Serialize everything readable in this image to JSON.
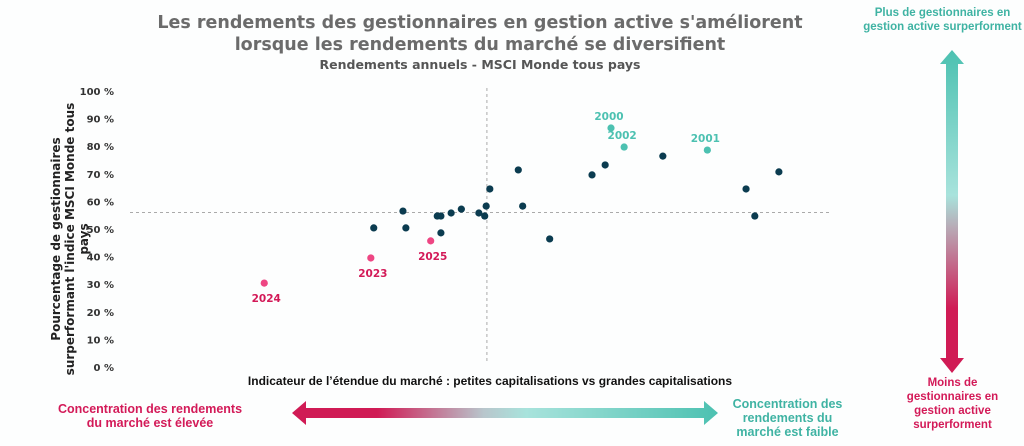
{
  "colors": {
    "dark": "#0b3c50",
    "teal": "#4cc1b1",
    "pink": "#ee4683",
    "pink_label": "#d31a58",
    "teal_label": "#3fb3a3"
  },
  "chart_data": {
    "type": "scatter",
    "title": "Les rendements des gestionnaires en gestion active s'améliorent lorsque les rendements du marché se diversifient",
    "subtitle": "Rendements annuels - MSCI Monde tous pays",
    "xlabel": "Indicateur de l’étendue du marché : petites capitalisations vs grandes capitalisations",
    "ylabel": "Pourcentage de gestionnaires surperformant l'indice MSCI Monde tous pays",
    "ylim": [
      0,
      100
    ],
    "xlim": [
      0,
      100
    ],
    "yticks": [
      "0 %",
      "10 %",
      "20 %",
      "30 %",
      "40 %",
      "50 %",
      "60 %",
      "70 %",
      "80 %",
      "90 %",
      "100 %"
    ],
    "reference_lines": {
      "x": 53,
      "y": 56
    },
    "grid": false,
    "points": [
      {
        "x": 37.5,
        "y": 50.4
      },
      {
        "x": 41.5,
        "y": 56.5
      },
      {
        "x": 41.9,
        "y": 50.4
      },
      {
        "x": 46.2,
        "y": 54.7
      },
      {
        "x": 46.7,
        "y": 54.7
      },
      {
        "x": 46.7,
        "y": 48.6
      },
      {
        "x": 48.1,
        "y": 55.8
      },
      {
        "x": 49.5,
        "y": 57.2
      },
      {
        "x": 51.9,
        "y": 55.8
      },
      {
        "x": 52.7,
        "y": 54.7
      },
      {
        "x": 52.9,
        "y": 58.3
      },
      {
        "x": 53.4,
        "y": 64.5
      },
      {
        "x": 57.3,
        "y": 71.4
      },
      {
        "x": 57.9,
        "y": 58.3
      },
      {
        "x": 61.6,
        "y": 46.4
      },
      {
        "x": 67.4,
        "y": 69.6
      },
      {
        "x": 69.2,
        "y": 73.2
      },
      {
        "x": 77.1,
        "y": 76.4
      },
      {
        "x": 88.5,
        "y": 64.5
      },
      {
        "x": 89.7,
        "y": 54.7
      },
      {
        "x": 93.0,
        "y": 70.7
      }
    ],
    "highlight_high": [
      {
        "label": "2000",
        "x": 70.0,
        "y": 86.6
      },
      {
        "label": "2002",
        "x": 71.8,
        "y": 79.7
      },
      {
        "label": "2001",
        "x": 83.2,
        "y": 78.6
      }
    ],
    "highlight_recent": [
      {
        "label": "2024",
        "x": 22.5,
        "y": 30.4
      },
      {
        "label": "2023",
        "x": 37.1,
        "y": 39.5
      },
      {
        "label": "2025",
        "x": 45.3,
        "y": 45.7
      }
    ]
  },
  "annotations": {
    "top_right": "Plus de gestionnaires en gestion active surperforment",
    "bottom_right": "Moins de gestionnaires en gestion active surperforment",
    "bottom_left": "Concentration des rendements du marché est élevée",
    "bottom_right_x": "Concentration des rendements du marché est faible"
  }
}
